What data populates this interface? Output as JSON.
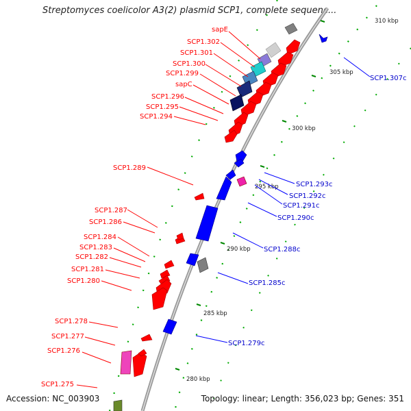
{
  "title": "Streptomyces coelicolor A3(2) plasmid SCP1, complete sequenc...",
  "footer": {
    "accession_label": "Accession:",
    "accession": "NC_003903",
    "topology_label": "Topology:",
    "topology": "linear",
    "length_label": "Length:",
    "length": "356,023 bp",
    "genes_label": "Genes:",
    "genes": "351"
  },
  "colors": {
    "forward": "#ff0000",
    "reverse": "#0000ff",
    "backbone": "#999999",
    "tick": "#008800"
  },
  "ticks": [
    "310 kbp",
    "305 kbp",
    "300 kbp",
    "295 kbp",
    "290 kbp",
    "285 kbp",
    "280 kbp"
  ],
  "forward_labels": [
    "sapE",
    "SCP1.302",
    "SCP1.301",
    "SCP1.300",
    "SCP1.299",
    "sapC",
    "SCP1.296",
    "SCP1.295",
    "SCP1.294",
    "SCP1.289",
    "SCP1.287",
    "SCP1.286",
    "SCP1.284",
    "SCP1.283",
    "SCP1.282",
    "SCP1.281",
    "SCP1.280",
    "SCP1.278",
    "SCP1.277",
    "SCP1.276",
    "SCP1.275"
  ],
  "reverse_labels": [
    "SCP1.307c",
    "SCP1.293c",
    "SCP1.292c",
    "SCP1.291c",
    "SCP1.290c",
    "SCP1.288c",
    "SCP1.285c",
    "SCP1.279c"
  ]
}
